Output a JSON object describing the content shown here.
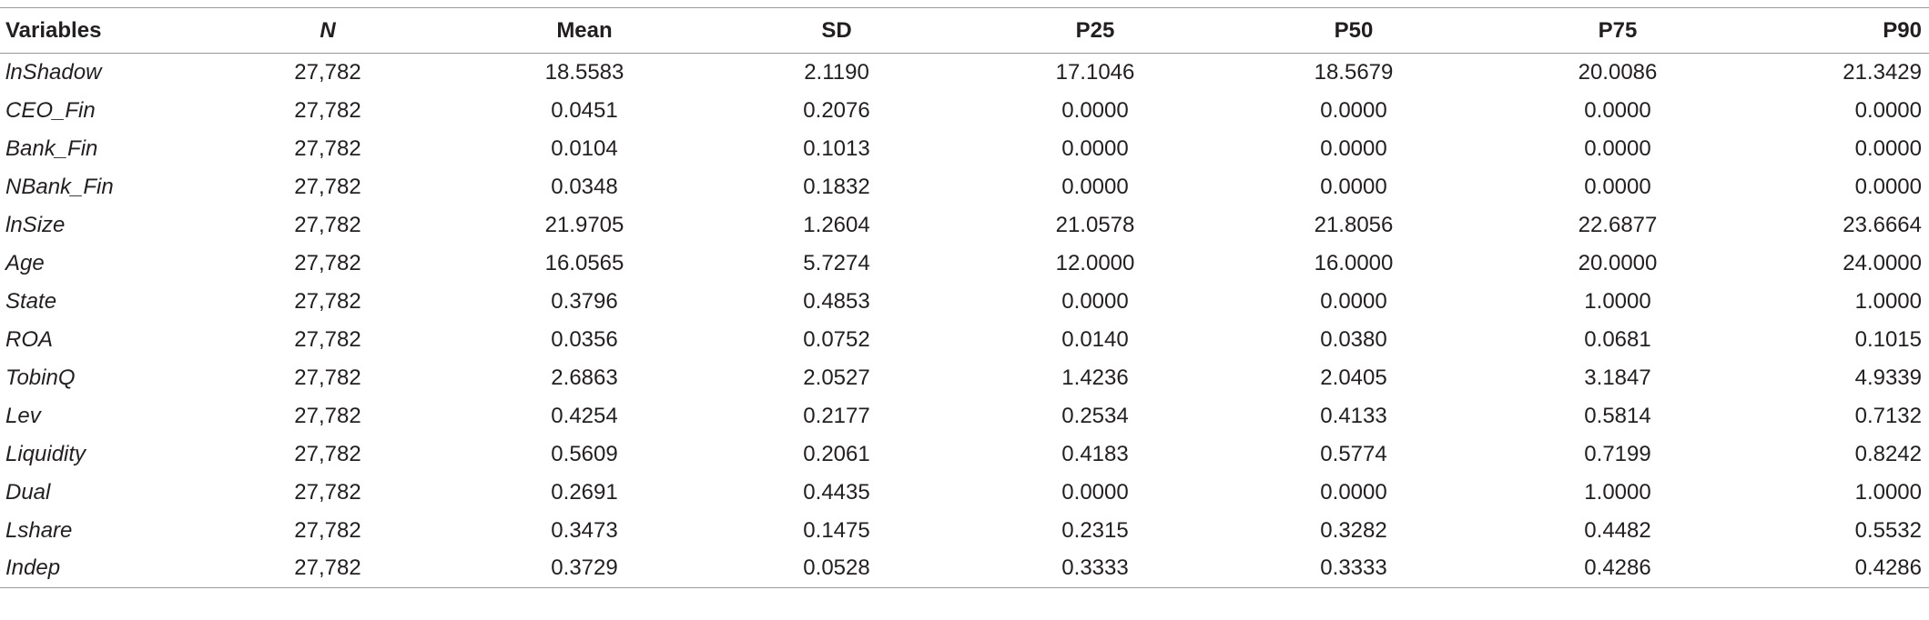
{
  "table": {
    "header": [
      "Variables",
      "N",
      "Mean",
      "SD",
      "P25",
      "P50",
      "P75",
      "P90"
    ],
    "rows": [
      [
        "lnShadow",
        "27,782",
        "18.5583",
        "2.1190",
        "17.1046",
        "18.5679",
        "20.0086",
        "21.3429"
      ],
      [
        "CEO_Fin",
        "27,782",
        "0.0451",
        "0.2076",
        "0.0000",
        "0.0000",
        "0.0000",
        "0.0000"
      ],
      [
        "Bank_Fin",
        "27,782",
        "0.0104",
        "0.1013",
        "0.0000",
        "0.0000",
        "0.0000",
        "0.0000"
      ],
      [
        "NBank_Fin",
        "27,782",
        "0.0348",
        "0.1832",
        "0.0000",
        "0.0000",
        "0.0000",
        "0.0000"
      ],
      [
        "lnSize",
        "27,782",
        "21.9705",
        "1.2604",
        "21.0578",
        "21.8056",
        "22.6877",
        "23.6664"
      ],
      [
        "Age",
        "27,782",
        "16.0565",
        "5.7274",
        "12.0000",
        "16.0000",
        "20.0000",
        "24.0000"
      ],
      [
        "State",
        "27,782",
        "0.3796",
        "0.4853",
        "0.0000",
        "0.0000",
        "1.0000",
        "1.0000"
      ],
      [
        "ROA",
        "27,782",
        "0.0356",
        "0.0752",
        "0.0140",
        "0.0380",
        "0.0681",
        "0.1015"
      ],
      [
        "TobinQ",
        "27,782",
        "2.6863",
        "2.0527",
        "1.4236",
        "2.0405",
        "3.1847",
        "4.9339"
      ],
      [
        "Lev",
        "27,782",
        "0.4254",
        "0.2177",
        "0.2534",
        "0.4133",
        "0.5814",
        "0.7132"
      ],
      [
        "Liquidity",
        "27,782",
        "0.5609",
        "0.2061",
        "0.4183",
        "0.5774",
        "0.7199",
        "0.8242"
      ],
      [
        "Dual",
        "27,782",
        "0.2691",
        "0.4435",
        "0.0000",
        "0.0000",
        "1.0000",
        "1.0000"
      ],
      [
        "Lshare",
        "27,782",
        "0.3473",
        "0.1475",
        "0.2315",
        "0.3282",
        "0.4482",
        "0.5532"
      ],
      [
        "Indep",
        "27,782",
        "0.3729",
        "0.0528",
        "0.3333",
        "0.3333",
        "0.4286",
        "0.4286"
      ]
    ]
  }
}
